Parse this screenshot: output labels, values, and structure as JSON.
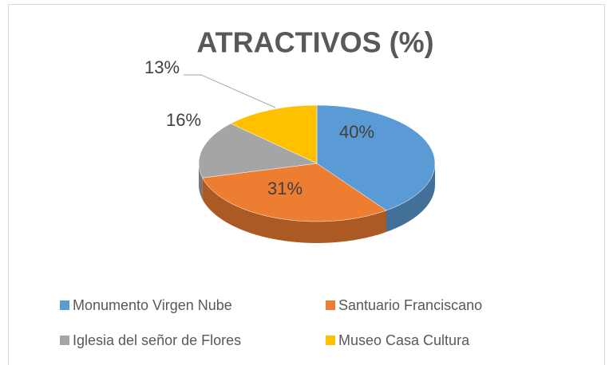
{
  "chart_data": {
    "type": "pie",
    "title": "ATRACTIVOS (%)",
    "categories": [
      "Monumento Virgen Nube",
      "Santuario Franciscano",
      "Iglesia del señor de Flores",
      "Museo Casa Cultura"
    ],
    "values": [
      40,
      31,
      16,
      13
    ],
    "value_labels": [
      "40%",
      "31%",
      "16%",
      "13%"
    ],
    "colors": [
      "#5b9bd5",
      "#ed7d31",
      "#a5a5a5",
      "#ffc000"
    ]
  }
}
